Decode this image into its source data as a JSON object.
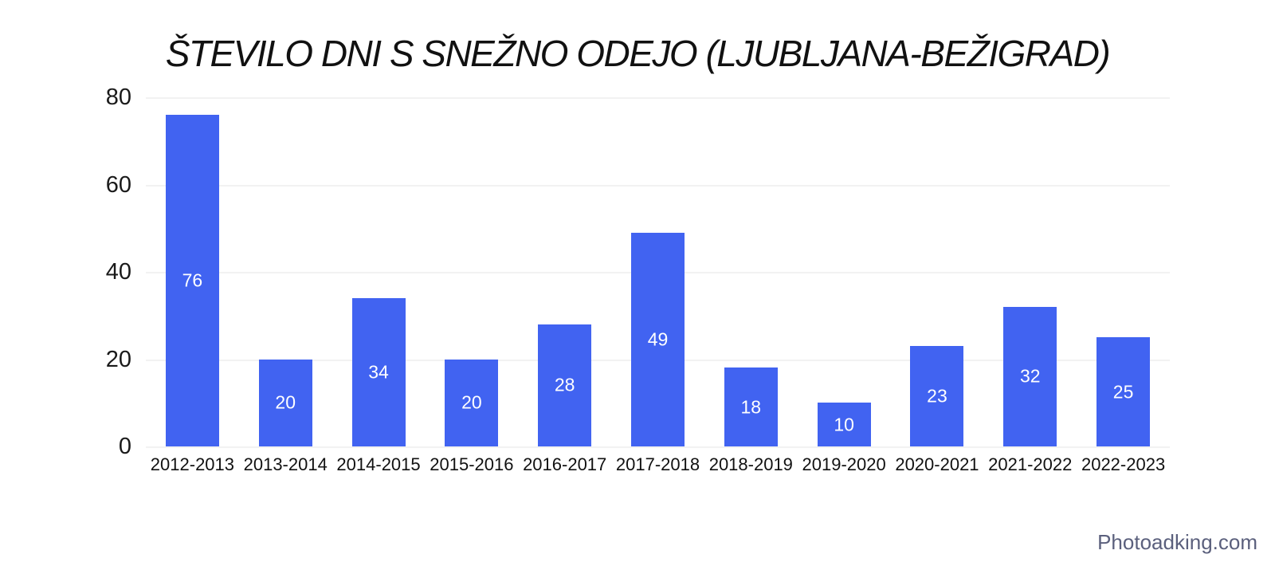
{
  "chart_data": {
    "type": "bar",
    "title": "ŠTEVILO DNI S SNEŽNO ODEJO (LJUBLJANA-BEŽIGRAD)",
    "categories": [
      "2012-2013",
      "2013-2014",
      "2014-2015",
      "2015-2016",
      "2016-2017",
      "2017-2018",
      "2018-2019",
      "2019-2020",
      "2020-2021",
      "2021-2022",
      "2022-2023"
    ],
    "values": [
      76,
      20,
      34,
      20,
      28,
      49,
      18,
      10,
      23,
      32,
      25
    ],
    "xlabel": "",
    "ylabel": "",
    "ylim": [
      0,
      80
    ],
    "yticks": [
      0,
      20,
      40,
      60,
      80
    ],
    "grid": "horizontal",
    "legend": "none",
    "bar_labels_shown": true,
    "colors": {
      "bar": "#4163f1",
      "bar_label": "#ffffff",
      "gridline": "#e4e4e4",
      "title": "#111111",
      "tick_label": "#1a1a1a"
    }
  },
  "footer": {
    "text": "Photoadking.com",
    "color": "#5b607d"
  }
}
